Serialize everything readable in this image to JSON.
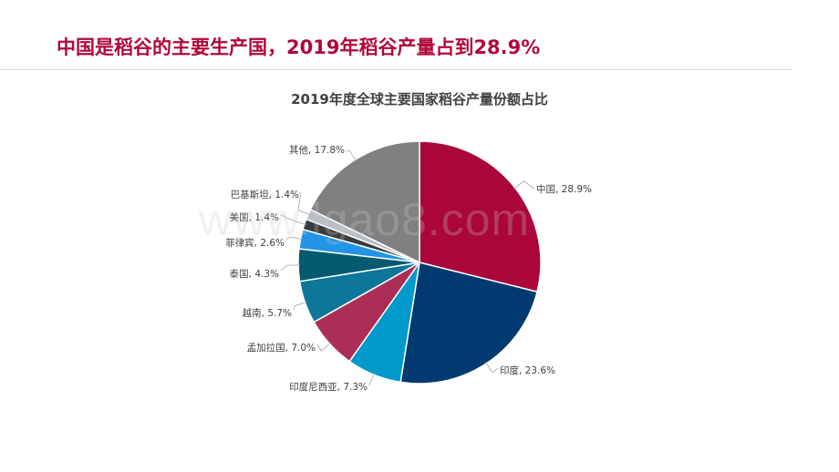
{
  "slide": {
    "headline": "中国是稻谷的主要生产国，2019年稻谷产量占到28.9%",
    "watermark": "www.lgao8.com"
  },
  "chart_data": {
    "type": "pie",
    "title": "2019年度全球主要国家稻谷产量份额占比",
    "unit": "%",
    "start_angle_deg": 0,
    "direction": "clockwise",
    "slices": [
      {
        "label": "中国",
        "value": 28.9,
        "display": "中国, 28.9%",
        "color": "#ab0639"
      },
      {
        "label": "印度",
        "value": 23.6,
        "display": "印度, 23.6%",
        "color": "#003a70"
      },
      {
        "label": "印度尼西亚",
        "value": 7.3,
        "display": "印度尼西亚, 7.3%",
        "color": "#0099cc"
      },
      {
        "label": "孟加拉国",
        "value": 7.0,
        "display": "孟加拉国, 7.0%",
        "color": "#ac2e56"
      },
      {
        "label": "越南",
        "value": 5.7,
        "display": "越南, 5.7%",
        "color": "#0e7799"
      },
      {
        "label": "泰国",
        "value": 4.3,
        "display": "泰国, 4.3%",
        "color": "#065a70"
      },
      {
        "label": "菲律宾",
        "value": 2.6,
        "display": "菲律宾, 2.6%",
        "color": "#2394e6"
      },
      {
        "label": "美国",
        "value": 1.4,
        "display": "美国, 1.4%",
        "color": "#3b3b3b"
      },
      {
        "label": "巴基斯坦",
        "value": 1.4,
        "display": "巴基斯坦, 1.4%",
        "color": "#b9bfc6"
      },
      {
        "label": "其他",
        "value": 17.8,
        "display": "其他, 17.8%",
        "color": "#808080"
      }
    ]
  }
}
